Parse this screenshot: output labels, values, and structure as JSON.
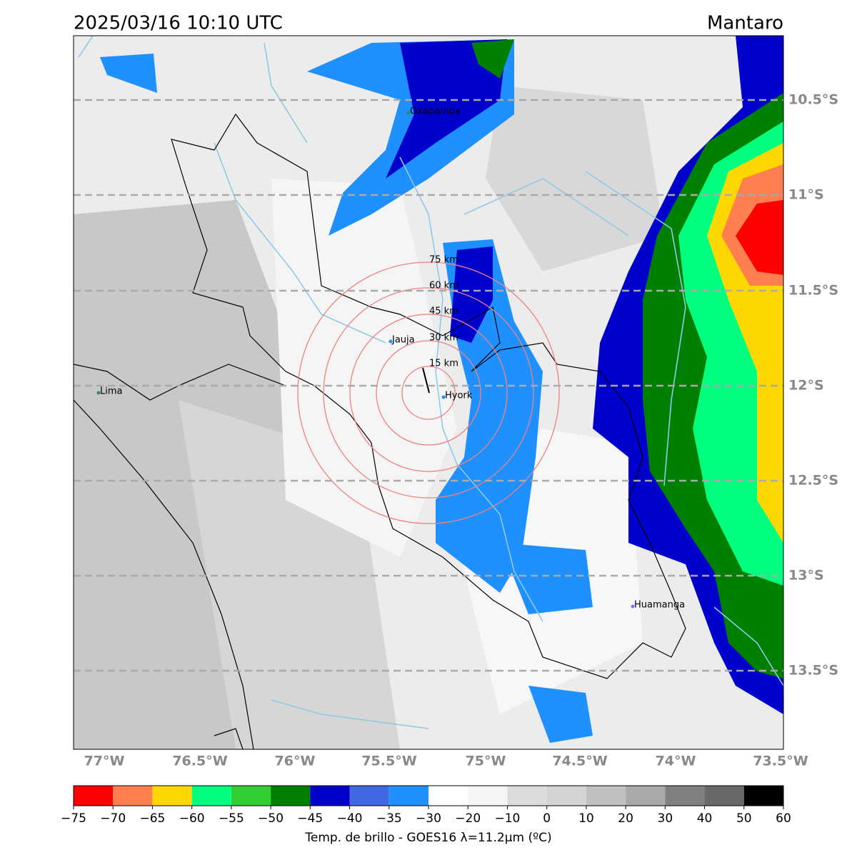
{
  "header": {
    "title": "2025/03/16 10:10 UTC",
    "region": "Mantaro"
  },
  "map": {
    "lat_labels": [
      "10.5°S",
      "11°S",
      "11.5°S",
      "12°S",
      "12.5°S",
      "13°S",
      "13.5°S"
    ],
    "lon_labels": [
      "77°W",
      "76.5°W",
      "76°W",
      "75.5°W",
      "75°W",
      "74.5°W",
      "74°W",
      "73.5°W"
    ],
    "places": [
      "Oxapampa",
      "Jauja",
      "Hyork",
      "Lima",
      "Huamanga"
    ],
    "rings": [
      "75 km",
      "60 km",
      "45 km",
      "30 km",
      "15 km"
    ]
  },
  "colorbar": {
    "ticks": [
      {
        "value": -75,
        "label": "−75"
      },
      {
        "value": -70,
        "label": "−70"
      },
      {
        "value": -65,
        "label": "−65"
      },
      {
        "value": -60,
        "label": "−60"
      },
      {
        "value": -55,
        "label": "−55"
      },
      {
        "value": -50,
        "label": "−50"
      },
      {
        "value": -45,
        "label": "−45"
      },
      {
        "value": -40,
        "label": "−40"
      },
      {
        "value": -35,
        "label": "−35"
      },
      {
        "value": -30,
        "label": "−30"
      },
      {
        "value": -20,
        "label": "−20"
      },
      {
        "value": -10,
        "label": "−10"
      },
      0,
      10,
      20,
      30,
      40,
      50,
      60
    ],
    "colors": [
      "#ff0000",
      "#ff7f50",
      "#ffd700",
      "#00ff7f",
      "#32cd32",
      "#008000",
      "#0000cd",
      "#4169e1",
      "#1e90ff",
      "#ffffff",
      "#f5f5f5",
      "#dcdcdc",
      "#d3d3d3",
      "#c0c0c0",
      "#a9a9a9",
      "#808080",
      "#696969",
      "#000000"
    ],
    "label": "Temp. de brillo - GOES16 λ=11.2μm (ºC)"
  }
}
